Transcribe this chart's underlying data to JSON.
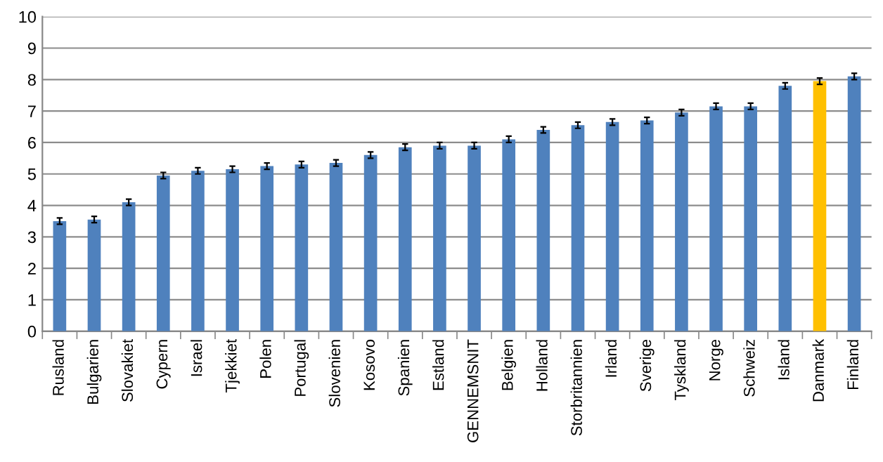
{
  "chart_data": {
    "type": "bar",
    "categories": [
      "Rusland",
      "Bulgarien",
      "Slovakiet",
      "Cypern",
      "Israel",
      "Tjekkiet",
      "Polen",
      "Portugal",
      "Slovenien",
      "Kosovo",
      "Spanien",
      "Estland",
      "GENNEMSNIT",
      "Belgien",
      "Holland",
      "Storbritannien",
      "Irland",
      "Sverige",
      "Tyskland",
      "Norge",
      "Schweiz",
      "Island",
      "Danmark",
      "Finland"
    ],
    "values": [
      3.5,
      3.55,
      4.1,
      4.95,
      5.1,
      5.15,
      5.25,
      5.3,
      5.35,
      5.6,
      5.85,
      5.9,
      5.9,
      6.1,
      6.4,
      6.55,
      6.65,
      6.7,
      6.95,
      7.15,
      7.15,
      7.8,
      7.95,
      8.1
    ],
    "errors": [
      0.1,
      0.1,
      0.1,
      0.1,
      0.1,
      0.1,
      0.1,
      0.1,
      0.1,
      0.1,
      0.1,
      0.1,
      0.1,
      0.1,
      0.1,
      0.1,
      0.1,
      0.1,
      0.1,
      0.1,
      0.1,
      0.1,
      0.1,
      0.1
    ],
    "colors": [
      "#4f81bd",
      "#4f81bd",
      "#4f81bd",
      "#4f81bd",
      "#4f81bd",
      "#4f81bd",
      "#4f81bd",
      "#4f81bd",
      "#4f81bd",
      "#4f81bd",
      "#4f81bd",
      "#4f81bd",
      "#4f81bd",
      "#4f81bd",
      "#4f81bd",
      "#4f81bd",
      "#4f81bd",
      "#4f81bd",
      "#4f81bd",
      "#4f81bd",
      "#4f81bd",
      "#4f81bd",
      "#ffc000",
      "#4f81bd"
    ],
    "ylim": [
      0,
      10
    ],
    "yticks": [
      0,
      1,
      2,
      3,
      4,
      5,
      6,
      7,
      8,
      9,
      10
    ],
    "grid": "y",
    "legend": false
  }
}
